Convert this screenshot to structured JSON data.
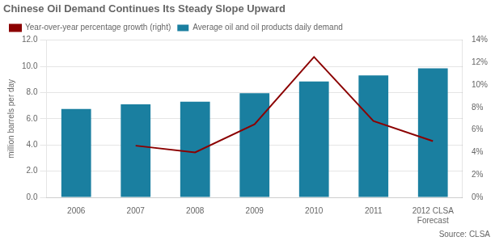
{
  "chart_data": {
    "type": "bar",
    "title": "Chinese Oil Demand Continues Its Steady Slope Upward",
    "ylabel": "million barrels per day",
    "annotation": "Source: CLSA",
    "categories": [
      "2006",
      "2007",
      "2008",
      "2009",
      "2010",
      "2011",
      "2012 CLSA\nForecast"
    ],
    "series": [
      {
        "name": "Average oil and oil products daily demand",
        "type": "bar",
        "color": "#1a7fa0",
        "values": [
          6.75,
          7.1,
          7.3,
          7.95,
          8.85,
          9.3,
          9.85
        ]
      },
      {
        "name": "Year-over-year percentage growth (right)",
        "type": "line",
        "color": "#8b0000",
        "axis": "y2",
        "values": [
          null,
          4.6,
          4.0,
          6.5,
          12.5,
          6.8,
          5.0
        ]
      }
    ],
    "ylim": [
      0,
      12.0
    ],
    "yticks": [
      {
        "value": 0,
        "label": "0.0"
      },
      {
        "value": 2,
        "label": "2.0"
      },
      {
        "value": 4,
        "label": "4.0"
      },
      {
        "value": 6,
        "label": "6.0"
      },
      {
        "value": 8,
        "label": "8.0"
      },
      {
        "value": 10,
        "label": "10.0"
      },
      {
        "value": 12,
        "label": "12.0"
      }
    ],
    "y2lim": [
      0,
      14
    ],
    "y2ticks": [
      {
        "value": 0,
        "label": "0%"
      },
      {
        "value": 2,
        "label": "2%"
      },
      {
        "value": 4,
        "label": "4%"
      },
      {
        "value": 6,
        "label": "6%"
      },
      {
        "value": 8,
        "label": "8%"
      },
      {
        "value": 10,
        "label": "10%"
      },
      {
        "value": 12,
        "label": "12%"
      },
      {
        "value": 14,
        "label": "14%"
      }
    ],
    "grid": true,
    "legend": "upper left"
  }
}
